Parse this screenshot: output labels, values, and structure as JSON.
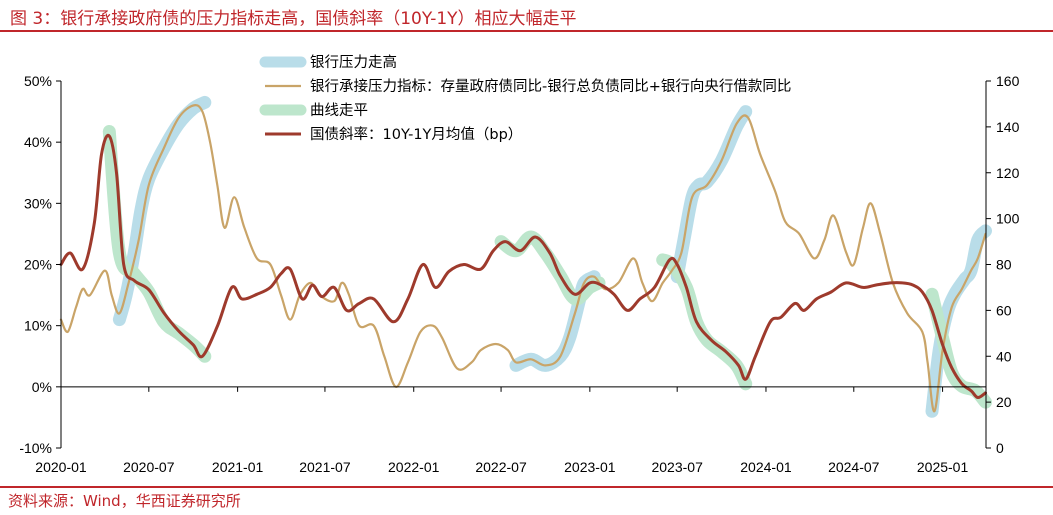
{
  "title": "图 3：银行承接政府债的压力指标走高，国债斜率（10Y-1Y）相应大幅走平",
  "source": "资料来源：Wind，华西证券研究所",
  "colors": {
    "accent": "#c0262b",
    "pressure_highlight": "#b9dde9",
    "flatten_highlight": "#bde6cc",
    "pressure_index": "#c9a468",
    "slope": "#9e3a2c"
  },
  "chart_data": {
    "type": "line",
    "x_ticks": [
      "2020-01",
      "2020-07",
      "2021-01",
      "2021-07",
      "2022-01",
      "2022-07",
      "2023-01",
      "2023-07",
      "2024-01",
      "2024-07",
      "2025-01"
    ],
    "x_range": [
      "2020-01",
      "2025-04"
    ],
    "ylim_left": [
      -10,
      50
    ],
    "ylim_right": [
      0,
      160
    ],
    "y_ticks_left": [
      "50%",
      "40%",
      "30%",
      "20%",
      "10%",
      "0%",
      "-10%"
    ],
    "y_ticks_right": [
      "160",
      "140",
      "120",
      "100",
      "80",
      "60",
      "40",
      "20",
      "0"
    ],
    "grid": false,
    "legend_position": "top-center",
    "series": [
      {
        "name": "银行压力走高",
        "axis": "left",
        "style": "highlight",
        "color": "#b9dde9",
        "segments": [
          [
            [
              "2020-05-01",
              11
            ],
            [
              "2020-05-15",
              15
            ],
            [
              "2020-06-01",
              22
            ],
            [
              "2020-06-15",
              29
            ],
            [
              "2020-07-01",
              34
            ],
            [
              "2020-08-01",
              39
            ],
            [
              "2020-09-01",
              43
            ],
            [
              "2020-10-01",
              45.5
            ],
            [
              "2020-10-25",
              46.5
            ]
          ],
          [
            [
              "2022-08-01",
              3.5
            ],
            [
              "2022-09-01",
              4.5
            ],
            [
              "2022-10-01",
              3.5
            ],
            [
              "2022-11-01",
              5
            ],
            [
              "2022-11-20",
              8
            ],
            [
              "2022-12-10",
              14
            ],
            [
              "2022-12-20",
              17
            ],
            [
              "2023-01-10",
              18
            ]
          ],
          [
            [
              "2023-07-01",
              18
            ],
            [
              "2023-07-15",
              24
            ],
            [
              "2023-08-01",
              31
            ],
            [
              "2023-08-15",
              33
            ],
            [
              "2023-09-01",
              33.5
            ],
            [
              "2023-10-01",
              37
            ],
            [
              "2023-11-01",
              42.5
            ],
            [
              "2023-11-20",
              45
            ]
          ],
          [
            [
              "2024-12-10",
              -4
            ],
            [
              "2024-12-25",
              6
            ],
            [
              "2025-01-10",
              12
            ],
            [
              "2025-01-25",
              15
            ],
            [
              "2025-02-15",
              17.5
            ],
            [
              "2025-03-01",
              19
            ],
            [
              "2025-03-15",
              24
            ],
            [
              "2025-03-31",
              25.5
            ]
          ]
        ]
      },
      {
        "name": "银行承接压力指标：存量政府债同比-银行总负债同比+银行向央行借款同比",
        "axis": "left",
        "style": "line",
        "color": "#c9a468",
        "points": [
          [
            "2020-01-01",
            11
          ],
          [
            "2020-01-15",
            9
          ],
          [
            "2020-02-01",
            13
          ],
          [
            "2020-02-15",
            16
          ],
          [
            "2020-03-01",
            15
          ],
          [
            "2020-04-01",
            19
          ],
          [
            "2020-04-15",
            15
          ],
          [
            "2020-05-01",
            12
          ],
          [
            "2020-05-20",
            17
          ],
          [
            "2020-06-10",
            24
          ],
          [
            "2020-07-01",
            33
          ],
          [
            "2020-08-01",
            39
          ],
          [
            "2020-09-01",
            44
          ],
          [
            "2020-10-01",
            46
          ],
          [
            "2020-10-20",
            45
          ],
          [
            "2020-11-05",
            40
          ],
          [
            "2020-11-20",
            33
          ],
          [
            "2020-12-05",
            26
          ],
          [
            "2020-12-25",
            31
          ],
          [
            "2021-01-15",
            26
          ],
          [
            "2021-02-10",
            21
          ],
          [
            "2021-03-10",
            20
          ],
          [
            "2021-04-01",
            15
          ],
          [
            "2021-04-20",
            11
          ],
          [
            "2021-05-10",
            15
          ],
          [
            "2021-06-01",
            17
          ],
          [
            "2021-06-20",
            15
          ],
          [
            "2021-07-20",
            14
          ],
          [
            "2021-08-05",
            17
          ],
          [
            "2021-08-20",
            15
          ],
          [
            "2021-09-10",
            10
          ],
          [
            "2021-10-10",
            10
          ],
          [
            "2021-11-01",
            5
          ],
          [
            "2021-11-25",
            0
          ],
          [
            "2021-12-20",
            4
          ],
          [
            "2022-01-15",
            9
          ],
          [
            "2022-02-10",
            10
          ],
          [
            "2022-03-01",
            8
          ],
          [
            "2022-04-01",
            3
          ],
          [
            "2022-05-01",
            4
          ],
          [
            "2022-05-20",
            6
          ],
          [
            "2022-06-20",
            7
          ],
          [
            "2022-07-15",
            6
          ],
          [
            "2022-08-01",
            4
          ],
          [
            "2022-09-01",
            4.5
          ],
          [
            "2022-10-01",
            3.5
          ],
          [
            "2022-11-01",
            5
          ],
          [
            "2022-12-01",
            12
          ],
          [
            "2022-12-20",
            17
          ],
          [
            "2023-01-10",
            18
          ],
          [
            "2023-02-01",
            16
          ],
          [
            "2023-03-01",
            17
          ],
          [
            "2023-04-01",
            21
          ],
          [
            "2023-04-20",
            17
          ],
          [
            "2023-05-10",
            14
          ],
          [
            "2023-06-01",
            17
          ],
          [
            "2023-06-20",
            19
          ],
          [
            "2023-07-10",
            22
          ],
          [
            "2023-08-01",
            31
          ],
          [
            "2023-09-01",
            33
          ],
          [
            "2023-10-01",
            37
          ],
          [
            "2023-11-01",
            43
          ],
          [
            "2023-11-25",
            44
          ],
          [
            "2023-12-20",
            38
          ],
          [
            "2024-01-20",
            32
          ],
          [
            "2024-02-10",
            27
          ],
          [
            "2024-03-10",
            25
          ],
          [
            "2024-04-10",
            21
          ],
          [
            "2024-05-01",
            24
          ],
          [
            "2024-05-20",
            28
          ],
          [
            "2024-06-15",
            22
          ],
          [
            "2024-07-01",
            20
          ],
          [
            "2024-07-20",
            26
          ],
          [
            "2024-08-05",
            30
          ],
          [
            "2024-08-25",
            25
          ],
          [
            "2024-09-20",
            17
          ],
          [
            "2024-10-20",
            12
          ],
          [
            "2024-11-20",
            9
          ],
          [
            "2024-12-01",
            4
          ],
          [
            "2024-12-15",
            -4
          ],
          [
            "2025-01-01",
            6
          ],
          [
            "2025-01-20",
            13
          ],
          [
            "2025-02-10",
            16
          ],
          [
            "2025-03-01",
            19
          ],
          [
            "2025-03-15",
            21
          ],
          [
            "2025-03-31",
            25
          ]
        ]
      },
      {
        "name": "曲线走平",
        "axis": "right",
        "style": "highlight",
        "color": "#bde6cc",
        "segments": [
          [
            [
              "2020-04-10",
              138
            ],
            [
              "2020-05-01",
              85
            ],
            [
              "2020-06-01",
              76
            ],
            [
              "2020-07-01",
              68
            ],
            [
              "2020-08-01",
              55
            ],
            [
              "2020-09-01",
              50
            ],
            [
              "2020-10-01",
              45
            ],
            [
              "2020-10-25",
              40
            ]
          ],
          [
            [
              "2022-07-01",
              90
            ],
            [
              "2022-08-01",
              86
            ],
            [
              "2022-09-01",
              92
            ],
            [
              "2022-10-01",
              85
            ],
            [
              "2022-11-01",
              75
            ],
            [
              "2022-12-01",
              65
            ],
            [
              "2023-01-01",
              70
            ],
            [
              "2023-01-20",
              72
            ]
          ],
          [
            [
              "2023-06-01",
              82
            ],
            [
              "2023-06-20",
              80
            ],
            [
              "2023-07-20",
              70
            ],
            [
              "2023-08-10",
              55
            ],
            [
              "2023-09-01",
              47
            ],
            [
              "2023-10-01",
              42
            ],
            [
              "2023-11-01",
              36
            ],
            [
              "2023-11-20",
              28
            ]
          ],
          [
            [
              "2024-12-10",
              67
            ],
            [
              "2025-01-01",
              48
            ],
            [
              "2025-01-20",
              33
            ],
            [
              "2025-02-10",
              27
            ],
            [
              "2025-03-10",
              25
            ],
            [
              "2025-03-31",
              20
            ]
          ]
        ]
      },
      {
        "name": "国债斜率：10Y-1Y月均值（bp）",
        "axis": "right",
        "style": "line",
        "color": "#9e3a2c",
        "points": [
          [
            "2020-01-01",
            80
          ],
          [
            "2020-01-20",
            85
          ],
          [
            "2020-02-15",
            78
          ],
          [
            "2020-03-10",
            98
          ],
          [
            "2020-03-25",
            128
          ],
          [
            "2020-04-10",
            136
          ],
          [
            "2020-04-25",
            120
          ],
          [
            "2020-05-10",
            80
          ],
          [
            "2020-06-01",
            73
          ],
          [
            "2020-07-01",
            69
          ],
          [
            "2020-08-01",
            59
          ],
          [
            "2020-09-01",
            51
          ],
          [
            "2020-10-01",
            45
          ],
          [
            "2020-10-20",
            40
          ],
          [
            "2020-11-20",
            53
          ],
          [
            "2020-12-20",
            70
          ],
          [
            "2021-01-10",
            65
          ],
          [
            "2021-02-10",
            67
          ],
          [
            "2021-03-10",
            70
          ],
          [
            "2021-04-01",
            76
          ],
          [
            "2021-04-20",
            78
          ],
          [
            "2021-05-15",
            65
          ],
          [
            "2021-06-05",
            71
          ],
          [
            "2021-06-25",
            66
          ],
          [
            "2021-07-20",
            70
          ],
          [
            "2021-08-15",
            60
          ],
          [
            "2021-09-10",
            63
          ],
          [
            "2021-10-10",
            65
          ],
          [
            "2021-11-20",
            55
          ],
          [
            "2021-12-20",
            65
          ],
          [
            "2022-01-20",
            80
          ],
          [
            "2022-02-15",
            70
          ],
          [
            "2022-03-15",
            77
          ],
          [
            "2022-04-15",
            80
          ],
          [
            "2022-05-20",
            78
          ],
          [
            "2022-06-15",
            86
          ],
          [
            "2022-07-10",
            90
          ],
          [
            "2022-08-10",
            86
          ],
          [
            "2022-09-10",
            92
          ],
          [
            "2022-10-10",
            85
          ],
          [
            "2022-11-01",
            75
          ],
          [
            "2022-12-01",
            67
          ],
          [
            "2023-01-01",
            72
          ],
          [
            "2023-01-25",
            71
          ],
          [
            "2023-02-20",
            67
          ],
          [
            "2023-03-20",
            60
          ],
          [
            "2023-04-15",
            65
          ],
          [
            "2023-05-15",
            70
          ],
          [
            "2023-06-15",
            82
          ],
          [
            "2023-07-01",
            80
          ],
          [
            "2023-07-20",
            70
          ],
          [
            "2023-08-10",
            55
          ],
          [
            "2023-09-10",
            47
          ],
          [
            "2023-10-10",
            42
          ],
          [
            "2023-11-05",
            36
          ],
          [
            "2023-11-20",
            30
          ],
          [
            "2023-12-10",
            40
          ],
          [
            "2024-01-10",
            55
          ],
          [
            "2024-02-01",
            57
          ],
          [
            "2024-03-01",
            63
          ],
          [
            "2024-03-20",
            60
          ],
          [
            "2024-04-15",
            65
          ],
          [
            "2024-05-15",
            68
          ],
          [
            "2024-06-15",
            72
          ],
          [
            "2024-07-20",
            70
          ],
          [
            "2024-08-15",
            71
          ],
          [
            "2024-09-15",
            72
          ],
          [
            "2024-10-10",
            72
          ],
          [
            "2024-11-01",
            71
          ],
          [
            "2024-11-20",
            68
          ],
          [
            "2024-12-10",
            60
          ],
          [
            "2025-01-01",
            45
          ],
          [
            "2025-01-20",
            35
          ],
          [
            "2025-02-10",
            28
          ],
          [
            "2025-03-01",
            25
          ],
          [
            "2025-03-15",
            22
          ],
          [
            "2025-03-31",
            24
          ]
        ]
      }
    ]
  }
}
